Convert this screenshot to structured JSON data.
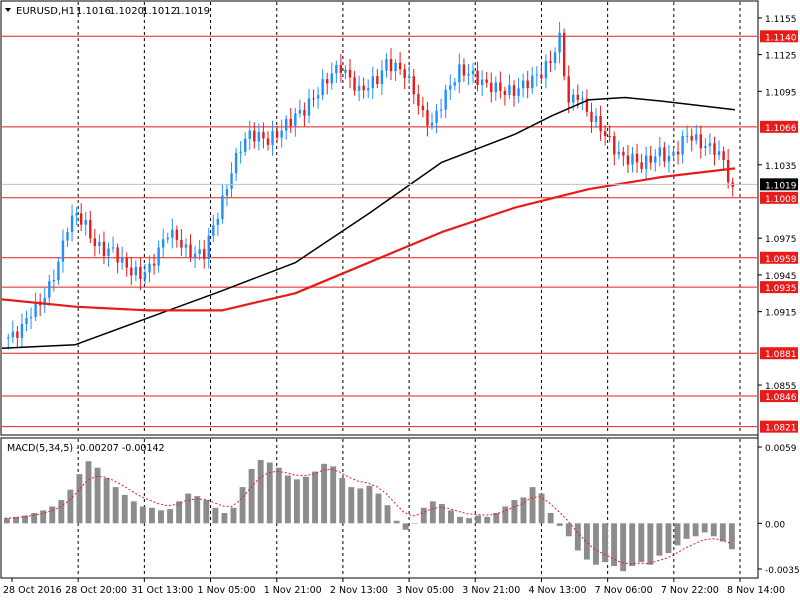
{
  "chart_data": [
    {
      "type": "candlestick",
      "symbol": "EURUSD,H1",
      "ohlc_header": [
        "1.1016",
        "1.1020",
        "1.1012",
        "1.1019"
      ],
      "ylim": [
        1.0815,
        1.1168
      ],
      "x_ticks": [
        "28 Oct 2016",
        "28 Oct 20:00",
        "31 Oct 13:00",
        "1 Nov 05:00",
        "1 Nov 21:00",
        "2 Nov 13:00",
        "3 Nov 05:00",
        "3 Nov 21:00",
        "4 Nov 13:00",
        "7 Nov 06:00",
        "7 Nov 22:00",
        "8 Nov 14:00"
      ],
      "y_ticks": [
        1.1155,
        1.1125,
        1.1095,
        1.1035,
        1.0975,
        1.0945,
        1.0915,
        1.0855
      ],
      "horizontal_levels": [
        {
          "label": "1.1140",
          "value": 1.114
        },
        {
          "label": "1.1066",
          "value": 1.1066
        },
        {
          "label": "1.1008",
          "value": 1.1008
        },
        {
          "label": "1.0959",
          "value": 1.0959
        },
        {
          "label": "1.0935",
          "value": 1.0935
        },
        {
          "label": "1.0881",
          "value": 1.0881
        },
        {
          "label": "1.0846",
          "value": 1.0846
        },
        {
          "label": "1.0821",
          "value": 1.0821
        }
      ],
      "current_price_label": "1.1019",
      "current_price": 1.1019,
      "price_path": [
        1.0893,
        1.0895,
        1.0902,
        1.0915,
        1.0922,
        1.0935,
        1.0955,
        1.0985,
        1.0995,
        1.0985,
        1.097,
        1.0965,
        1.0965,
        1.0955,
        1.0948,
        1.0945,
        1.095,
        1.0965,
        1.098,
        1.0975,
        1.0965,
        1.0962,
        1.0963,
        1.0985,
        1.1005,
        1.103,
        1.105,
        1.106,
        1.1058,
        1.1055,
        1.106,
        1.1068,
        1.1075,
        1.108,
        1.109,
        1.11,
        1.111,
        1.1115,
        1.1105,
        1.1095,
        1.11,
        1.1105,
        1.1118,
        1.1115,
        1.111,
        1.1095,
        1.1075,
        1.1068,
        1.1085,
        1.11,
        1.1112,
        1.111,
        1.1105,
        1.11,
        1.1098,
        1.1095,
        1.1095,
        1.11,
        1.1105,
        1.111,
        1.112,
        1.1138,
        1.1085,
        1.1093,
        1.1078,
        1.107,
        1.106,
        1.1048,
        1.104,
        1.104,
        1.1035,
        1.104,
        1.1045,
        1.104,
        1.1048,
        1.106,
        1.1055,
        1.105,
        1.1048,
        1.1038,
        1.1012
      ],
      "moving_averages": [
        {
          "color": "#000000",
          "points": [
            [
              0,
              1.0885
            ],
            [
              0.1,
              1.0888
            ],
            [
              0.2,
              1.091
            ],
            [
              0.3,
              1.0932
            ],
            [
              0.4,
              1.0955
            ],
            [
              0.5,
              1.0995
            ],
            [
              0.6,
              1.1037
            ],
            [
              0.7,
              1.106
            ],
            [
              0.75,
              1.1075
            ],
            [
              0.8,
              1.1088
            ],
            [
              0.85,
              1.109
            ],
            [
              0.9,
              1.1087
            ],
            [
              1,
              1.108
            ]
          ]
        },
        {
          "color": "#e81b1b",
          "points": [
            [
              0,
              1.0925
            ],
            [
              0.1,
              1.0919
            ],
            [
              0.2,
              1.0916
            ],
            [
              0.3,
              1.0916
            ],
            [
              0.4,
              1.093
            ],
            [
              0.5,
              1.0955
            ],
            [
              0.6,
              1.098
            ],
            [
              0.7,
              1.1
            ],
            [
              0.8,
              1.1015
            ],
            [
              0.9,
              1.1025
            ],
            [
              1,
              1.1032
            ]
          ]
        }
      ]
    },
    {
      "type": "bar",
      "title": "MACD(5,34,5) -0.00207 -0.00142",
      "ylim": [
        -0.00353,
        0.0059
      ],
      "y_ticks": [
        "0.0059",
        "0.00",
        "-0.00353"
      ],
      "histogram": [
        0.0004,
        0.0005,
        0.0006,
        0.0008,
        0.001,
        0.0013,
        0.0018,
        0.0026,
        0.0038,
        0.0048,
        0.0043,
        0.0035,
        0.0028,
        0.0022,
        0.0017,
        0.0013,
        0.0012,
        0.001,
        0.0011,
        0.0017,
        0.0023,
        0.0021,
        0.0018,
        0.0012,
        0.0008,
        0.0012,
        0.0028,
        0.0042,
        0.0049,
        0.0047,
        0.0043,
        0.0037,
        0.0034,
        0.0036,
        0.004,
        0.0046,
        0.0044,
        0.0035,
        0.0028,
        0.0027,
        0.0029,
        0.0023,
        0.0014,
        0.0002,
        -0.0005,
        0.0,
        0.0012,
        0.0017,
        0.0015,
        0.001,
        0.0005,
        0.0004,
        0.0006,
        0.0005,
        0.0008,
        0.0013,
        0.0018,
        0.002,
        0.0028,
        0.0023,
        0.0008,
        -0.0002,
        -0.001,
        -0.0021,
        -0.0028,
        -0.0032,
        -0.003,
        -0.0033,
        -0.0037,
        -0.0033,
        -0.003,
        -0.0032,
        -0.0025,
        -0.0023,
        -0.0017,
        -0.0012,
        -0.001,
        -0.0007,
        -0.001,
        -0.0014,
        -0.002
      ],
      "signal_color": "#e81b1b",
      "histogram_color": "#8c8c8c"
    }
  ]
}
